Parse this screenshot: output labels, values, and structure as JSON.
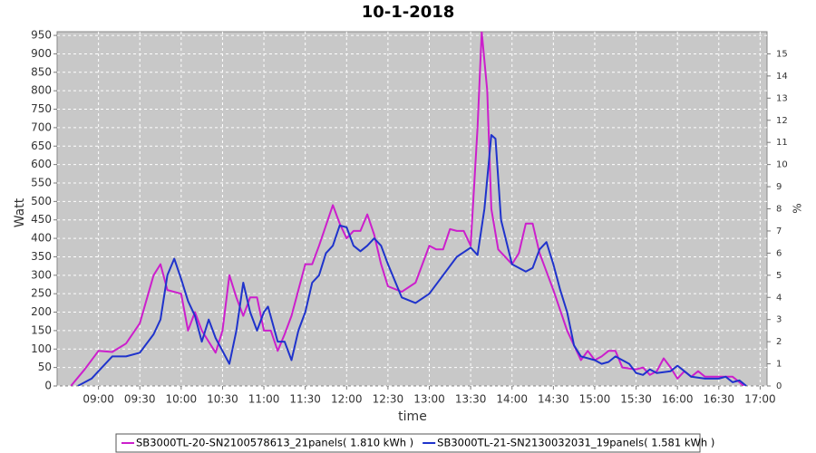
{
  "chart_data": {
    "type": "line",
    "title": "10-1-2018",
    "x_label": "time",
    "y_label": "Watt",
    "y2_label": "%",
    "xlim": [
      "08:30",
      "17:05"
    ],
    "xticks": [
      "09:00",
      "09:30",
      "10:00",
      "10:30",
      "11:00",
      "11:30",
      "12:00",
      "12:30",
      "13:00",
      "13:30",
      "14:00",
      "14:30",
      "15:00",
      "15:30",
      "16:00",
      "16:30",
      "17:00"
    ],
    "ylim": [
      0,
      960
    ],
    "yticks": [
      0,
      50,
      100,
      150,
      200,
      250,
      300,
      350,
      400,
      450,
      500,
      550,
      600,
      650,
      700,
      750,
      800,
      850,
      900,
      950
    ],
    "y2lim": [
      0,
      16
    ],
    "y2ticks": [
      0,
      1,
      2,
      3,
      4,
      5,
      6,
      7,
      8,
      9,
      10,
      11,
      12,
      13,
      14,
      15
    ],
    "grid": true,
    "background": "#c8c8c8",
    "legend": "bottom",
    "series": [
      {
        "name": "SB3000TL-20-SN2100578613_21panels( 1.810 kWh )",
        "color": "#cc1fcc",
        "x": [
          "08:40",
          "08:50",
          "09:00",
          "09:10",
          "09:20",
          "09:30",
          "09:40",
          "09:45",
          "09:50",
          "10:00",
          "10:05",
          "10:10",
          "10:15",
          "10:20",
          "10:25",
          "10:30",
          "10:35",
          "10:40",
          "10:45",
          "10:50",
          "10:55",
          "11:00",
          "11:05",
          "11:10",
          "11:15",
          "11:20",
          "11:30",
          "11:35",
          "11:40",
          "11:50",
          "11:55",
          "12:00",
          "12:05",
          "12:10",
          "12:15",
          "12:20",
          "12:25",
          "12:30",
          "12:40",
          "12:50",
          "12:55",
          "13:00",
          "13:05",
          "13:10",
          "13:15",
          "13:20",
          "13:25",
          "13:30",
          "13:35",
          "13:38",
          "13:42",
          "13:45",
          "13:50",
          "14:00",
          "14:05",
          "14:10",
          "14:15",
          "14:20",
          "14:25",
          "14:30",
          "14:40",
          "14:50",
          "14:55",
          "15:00",
          "15:05",
          "15:10",
          "15:15",
          "15:20",
          "15:30",
          "15:35",
          "15:40",
          "15:45",
          "15:50",
          "15:55",
          "16:00",
          "16:05",
          "16:10",
          "16:15",
          "16:20",
          "16:30",
          "16:40",
          "16:45",
          "16:48"
        ],
        "values": [
          0,
          45,
          95,
          92,
          115,
          170,
          300,
          330,
          260,
          250,
          150,
          200,
          150,
          120,
          90,
          150,
          300,
          240,
          190,
          240,
          240,
          150,
          150,
          95,
          140,
          190,
          330,
          330,
          380,
          490,
          440,
          400,
          420,
          420,
          465,
          410,
          330,
          270,
          255,
          280,
          330,
          380,
          370,
          370,
          425,
          420,
          420,
          380,
          700,
          960,
          800,
          480,
          370,
          330,
          360,
          440,
          440,
          360,
          310,
          260,
          150,
          70,
          95,
          70,
          80,
          95,
          95,
          50,
          45,
          50,
          30,
          40,
          75,
          50,
          20,
          40,
          25,
          40,
          25,
          25,
          25,
          10,
          0
        ]
      },
      {
        "name": "SB3000TL-21-SN2130032031_19panels( 1.581 kWh )",
        "color": "#1f33cc",
        "x": [
          "08:45",
          "08:55",
          "09:00",
          "09:10",
          "09:20",
          "09:30",
          "09:40",
          "09:45",
          "09:50",
          "09:55",
          "10:00",
          "10:05",
          "10:10",
          "10:15",
          "10:20",
          "10:25",
          "10:35",
          "10:40",
          "10:45",
          "10:50",
          "10:55",
          "11:00",
          "11:03",
          "11:10",
          "11:15",
          "11:20",
          "11:25",
          "11:30",
          "11:35",
          "11:40",
          "11:45",
          "11:50",
          "11:55",
          "12:00",
          "12:05",
          "12:10",
          "12:15",
          "12:20",
          "12:25",
          "12:30",
          "12:40",
          "12:50",
          "13:00",
          "13:10",
          "13:20",
          "13:30",
          "13:35",
          "13:40",
          "13:45",
          "13:48",
          "13:52",
          "14:00",
          "14:10",
          "14:15",
          "14:20",
          "14:25",
          "14:30",
          "14:35",
          "14:40",
          "14:45",
          "14:50",
          "15:00",
          "15:05",
          "15:10",
          "15:15",
          "15:20",
          "15:25",
          "15:30",
          "15:35",
          "15:40",
          "15:45",
          "15:55",
          "16:00",
          "16:05",
          "16:10",
          "16:20",
          "16:30",
          "16:35",
          "16:40",
          "16:45",
          "16:50"
        ],
        "values": [
          0,
          20,
          40,
          80,
          80,
          90,
          140,
          180,
          300,
          345,
          290,
          230,
          190,
          120,
          180,
          130,
          60,
          150,
          280,
          200,
          150,
          200,
          215,
          120,
          120,
          70,
          150,
          200,
          280,
          300,
          360,
          380,
          435,
          430,
          380,
          365,
          380,
          400,
          380,
          330,
          240,
          225,
          250,
          300,
          350,
          375,
          355,
          480,
          680,
          670,
          450,
          330,
          310,
          320,
          370,
          390,
          330,
          260,
          200,
          110,
          80,
          70,
          60,
          65,
          80,
          70,
          60,
          35,
          30,
          45,
          35,
          40,
          55,
          40,
          25,
          20,
          20,
          25,
          10,
          15,
          0
        ]
      }
    ]
  }
}
